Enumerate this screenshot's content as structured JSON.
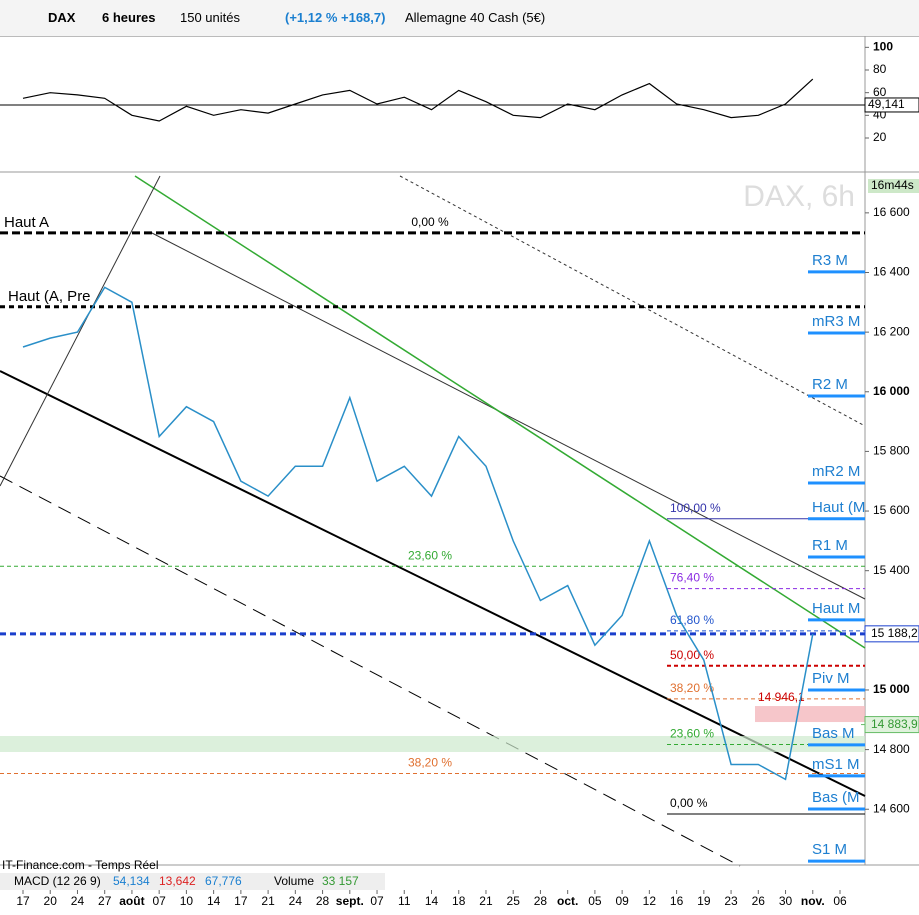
{
  "toolbar": {
    "symbol": "DAX",
    "period": "6 heures",
    "units": "150 unités",
    "change": "(+1,12 % +168,7)",
    "instrument": "Allemagne 40 Cash (5€)"
  },
  "chart_data": [
    {
      "type": "line",
      "name": "rsi",
      "ylim": [
        -10,
        110
      ],
      "yticks": [
        100,
        80,
        60,
        40,
        20
      ],
      "current": 49.141,
      "current_label": "49,141",
      "color": "#000000",
      "series": [
        {
          "values": [
            55,
            60,
            58,
            55,
            40,
            35,
            48,
            40,
            45,
            42,
            50,
            58,
            62,
            50,
            56,
            45,
            62,
            52,
            40,
            38,
            50,
            45,
            58,
            68,
            50,
            45,
            38,
            40,
            50,
            72,
            null
          ]
        }
      ]
    },
    {
      "type": "line",
      "name": "price",
      "watermark": "DAX, 6h",
      "timer": "16m44s",
      "ylim": [
        14413,
        16737
      ],
      "yticks": [
        {
          "value": 16600,
          "label": "16 600"
        },
        {
          "value": 16400,
          "label": "16 400"
        },
        {
          "value": 16200,
          "label": "16 200"
        },
        {
          "value": 16000,
          "label": "16 000"
        },
        {
          "value": 15800,
          "label": "15 800"
        },
        {
          "value": 15600,
          "label": "15 600"
        },
        {
          "value": 15400,
          "label": "15 400"
        },
        {
          "value": 15000,
          "label": "15 000"
        },
        {
          "value": 14800,
          "label": "14 800"
        },
        {
          "value": 14600,
          "label": "14 600"
        }
      ],
      "categories": [
        "17",
        "20",
        "24",
        "27",
        "août",
        "07",
        "10",
        "14",
        "17",
        "21",
        "24",
        "28",
        "sept.",
        "07",
        "11",
        "14",
        "18",
        "21",
        "25",
        "28",
        "oct.",
        "05",
        "09",
        "12",
        "16",
        "19",
        "23",
        "26",
        "30",
        "nov.",
        "06"
      ],
      "series": [
        {
          "color": "#2a8fc8",
          "values": [
            16150,
            16180,
            16200,
            16350,
            16300,
            15850,
            15950,
            15900,
            15700,
            15650,
            15750,
            15750,
            15980,
            15700,
            15750,
            15650,
            15850,
            15750,
            15500,
            15300,
            15350,
            15150,
            15250,
            15500,
            15250,
            15100,
            14750,
            14750,
            14700,
            15188,
            null
          ]
        }
      ],
      "last": {
        "value": 15188.2,
        "label": "15 188,2"
      },
      "marker": {
        "value": 14883.9,
        "label": "14 883,9"
      },
      "box": {
        "value": 14946.1,
        "label": "14 946,1"
      },
      "left_levels": [
        {
          "name": "Haut A",
          "value": 16533
        },
        {
          "name": "Haut (A, Pre",
          "value": 16285
        }
      ],
      "levels": [
        {
          "name": "R3 M",
          "value": 16402
        },
        {
          "name": "mR3 M",
          "value": 16197
        },
        {
          "name": "R2 M",
          "value": 15986
        },
        {
          "name": "mR2 M",
          "value": 15694
        },
        {
          "name": "Haut (M",
          "value": 15574
        },
        {
          "name": "R1 M",
          "value": 15446
        },
        {
          "name": "Haut M",
          "value": 15235
        },
        {
          "name": "Piv M",
          "value": 15000
        },
        {
          "name": "Bas M",
          "value": 14816
        },
        {
          "name": "mS1 M",
          "value": 14712
        },
        {
          "name": "Bas (M",
          "value": 14601
        },
        {
          "name": "S1 M",
          "value": 14426
        }
      ],
      "fib_a": [
        {
          "label": "0,00 %",
          "value": 16533,
          "color": "#000000"
        },
        {
          "label": "23,60 %",
          "value": 15415,
          "color": "#33aa33"
        },
        {
          "label": "38,20 %",
          "value": 14720,
          "color": "#e07030"
        }
      ],
      "fib_b": [
        {
          "label": "100,00 %",
          "value": 15574,
          "color": "#3333aa"
        },
        {
          "label": "76,40 %",
          "value": 15340,
          "color": "#8a2be2"
        },
        {
          "label": "61,80 %",
          "value": 15198,
          "color": "#2255cc"
        },
        {
          "label": "50,00 %",
          "value": 15081,
          "color": "#cc0000"
        },
        {
          "label": "38,20 %",
          "value": 14970,
          "color": "#e07030"
        },
        {
          "label": "23,60 %",
          "value": 14817,
          "color": "#33aa33"
        },
        {
          "label": "0,00 %",
          "value": 14584,
          "color": "#000000"
        }
      ]
    }
  ],
  "footer": {
    "source": "IT-Finance.com - Temps Réel",
    "macd": "MACD (12 26 9)",
    "macd_values": [
      "54,134",
      "13,642",
      "67,776"
    ],
    "volume": "Volume",
    "volume_value": "33 157"
  }
}
